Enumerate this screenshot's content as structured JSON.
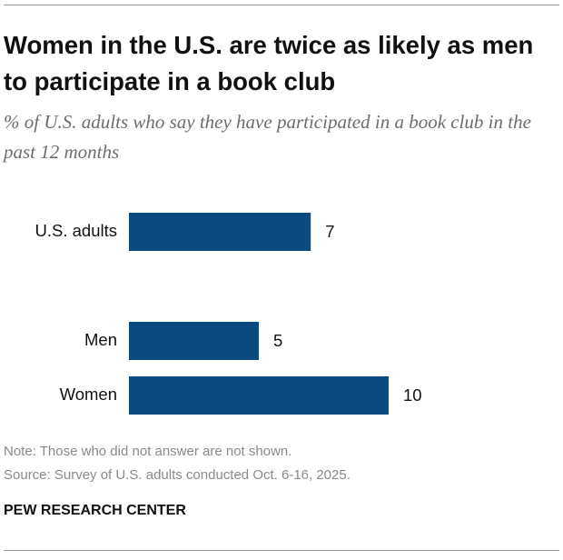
{
  "chart_data": {
    "type": "bar",
    "orientation": "horizontal",
    "title": "Women in the U.S. are twice as likely as men to participate in a book club",
    "subtitle": "% of U.S. adults who say they have participated in a book club in the past 12 months",
    "categories": [
      "U.S. adults",
      null,
      "Men",
      "Women"
    ],
    "values": [
      7,
      null,
      5,
      10
    ],
    "color": "#0b4a7e",
    "note": "Note: Those who did not answer are not shown.",
    "source": "Source: Survey of U.S. adults conducted Oct. 6-16, 2025.",
    "footer": "PEW RESEARCH CENTER"
  }
}
